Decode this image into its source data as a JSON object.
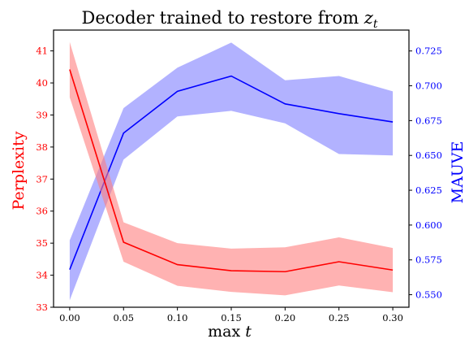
{
  "chart_data": {
    "type": "line",
    "title": "Decoder trained to restore from z_t",
    "title_main": "Decoder trained to restore from ",
    "title_var": "z",
    "title_sub": "t",
    "xlabel_main": "max ",
    "xlabel_var": "t",
    "x": [
      0.0,
      0.05,
      0.1,
      0.15,
      0.2,
      0.25,
      0.3
    ],
    "xlim": [
      -0.015,
      0.315
    ],
    "x_ticks": [
      "0.00",
      "0.05",
      "0.10",
      "0.15",
      "0.20",
      "0.25",
      "0.30"
    ],
    "grid": false,
    "legend": "none",
    "left_axis": {
      "label": "Perplexity",
      "color": "#ff0000",
      "ylim": [
        33.0,
        41.65
      ],
      "ticks": [
        33,
        34,
        35,
        36,
        37,
        38,
        39,
        40,
        41
      ],
      "series": {
        "values": [
          40.42,
          35.03,
          34.33,
          34.14,
          34.11,
          34.42,
          34.16
        ],
        "lower": [
          39.55,
          34.42,
          33.67,
          33.48,
          33.37,
          33.68,
          33.47
        ],
        "upper": [
          41.28,
          35.65,
          35.0,
          34.83,
          34.87,
          35.18,
          34.85
        ],
        "line_color": "#ff0000",
        "band_color": "#ff7f7f"
      }
    },
    "right_axis": {
      "label": "MAUVE",
      "color": "#0000ff",
      "ylim": [
        0.541,
        0.74
      ],
      "ticks": [
        "0.550",
        "0.575",
        "0.600",
        "0.625",
        "0.650",
        "0.675",
        "0.700",
        "0.725"
      ],
      "series": {
        "values": [
          0.568,
          0.666,
          0.696,
          0.707,
          0.687,
          0.68,
          0.674
        ],
        "lower": [
          0.546,
          0.647,
          0.678,
          0.682,
          0.673,
          0.651,
          0.65
        ],
        "upper": [
          0.589,
          0.684,
          0.713,
          0.731,
          0.704,
          0.707,
          0.696
        ],
        "line_color": "#0000ff",
        "band_color": "#7f7fff"
      }
    }
  }
}
